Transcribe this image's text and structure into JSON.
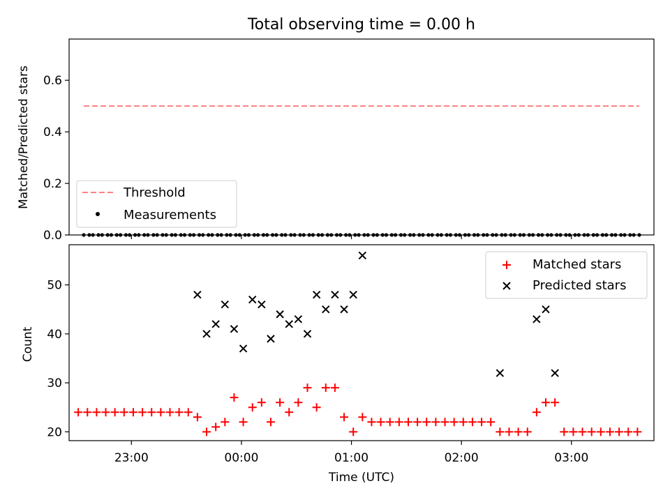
{
  "figure": {
    "title": "Total observing time = 0.00 h",
    "xlabel": "Time (UTC)"
  },
  "chart_data": [
    {
      "type": "scatter",
      "panel": "top",
      "ylabel": "Matched/Predicted stars",
      "xlim": [
        "22:26",
        "03:45"
      ],
      "ylim": [
        0,
        0.76
      ],
      "yticks": [
        0.0,
        0.2,
        0.4,
        0.6
      ],
      "ytick_labels": [
        "0.0",
        "0.2",
        "0.4",
        "0.6"
      ],
      "legend_position": "lower-left",
      "threshold": {
        "name": "Threshold",
        "value": 0.5,
        "x_start": "22:34",
        "x_end": "03:37",
        "color": "#ff7f7f"
      },
      "series": [
        {
          "name": "Measurements",
          "color": "#000000",
          "marker": "dot",
          "x": [
            "22:34",
            "22:37",
            "22:39",
            "22:42",
            "22:44",
            "22:47",
            "22:49",
            "22:52",
            "22:54",
            "22:57",
            "22:59",
            "23:02",
            "23:04",
            "23:07",
            "23:09",
            "23:12",
            "23:14",
            "23:17",
            "23:19",
            "23:22",
            "23:24",
            "23:27",
            "23:29",
            "23:32",
            "23:34",
            "23:37",
            "23:39",
            "23:42",
            "23:44",
            "23:47",
            "23:49",
            "23:52",
            "23:54",
            "23:57",
            "23:59",
            "00:02",
            "00:04",
            "00:07",
            "00:09",
            "00:12",
            "00:14",
            "00:17",
            "00:19",
            "00:22",
            "00:24",
            "00:27",
            "00:29",
            "00:32",
            "00:34",
            "00:37",
            "00:39",
            "00:42",
            "00:44",
            "00:47",
            "00:49",
            "00:52",
            "00:54",
            "00:57",
            "00:59",
            "01:02",
            "01:04",
            "01:07",
            "01:09",
            "01:12",
            "01:14",
            "01:17",
            "01:19",
            "01:22",
            "01:24",
            "01:27",
            "01:29",
            "01:32",
            "01:34",
            "01:37",
            "01:39",
            "01:42",
            "01:44",
            "01:47",
            "01:49",
            "01:52",
            "01:54",
            "01:57",
            "01:59",
            "02:02",
            "02:04",
            "02:07",
            "02:09",
            "02:12",
            "02:14",
            "02:17",
            "02:19",
            "02:22",
            "02:24",
            "02:27",
            "02:29",
            "02:32",
            "02:34",
            "02:37",
            "02:39",
            "02:42",
            "02:44",
            "02:47",
            "02:49",
            "02:52",
            "02:54",
            "02:57",
            "02:59",
            "03:02",
            "03:04",
            "03:07",
            "03:09",
            "03:12",
            "03:14",
            "03:17",
            "03:19",
            "03:22",
            "03:24",
            "03:27",
            "03:29",
            "03:32",
            "03:34",
            "03:37"
          ],
          "y": [
            0,
            0,
            0,
            0,
            0,
            0,
            0,
            0,
            0,
            0,
            0,
            0,
            0,
            0,
            0,
            0,
            0,
            0,
            0,
            0,
            0,
            0,
            0,
            0,
            0,
            0,
            0,
            0,
            0,
            0,
            0,
            0,
            0,
            0,
            0,
            0,
            0,
            0,
            0,
            0,
            0,
            0,
            0,
            0,
            0,
            0,
            0,
            0,
            0,
            0,
            0,
            0,
            0,
            0,
            0,
            0,
            0,
            0,
            0,
            0,
            0,
            0,
            0,
            0,
            0,
            0,
            0,
            0,
            0,
            0,
            0,
            0,
            0,
            0,
            0,
            0,
            0,
            0,
            0,
            0,
            0,
            0,
            0,
            0,
            0,
            0,
            0,
            0,
            0,
            0,
            0,
            0,
            0,
            0,
            0,
            0,
            0,
            0,
            0,
            0,
            0,
            0,
            0,
            0,
            0,
            0,
            0,
            0,
            0,
            0,
            0,
            0,
            0,
            0,
            0,
            0,
            0,
            0,
            0,
            0,
            0,
            0
          ]
        }
      ]
    },
    {
      "type": "scatter",
      "panel": "bottom",
      "ylabel": "Count",
      "xlim": [
        "22:26",
        "03:45"
      ],
      "ylim": [
        18.2,
        58.2
      ],
      "yticks": [
        20,
        30,
        40,
        50
      ],
      "ytick_labels": [
        "20",
        "30",
        "40",
        "50"
      ],
      "xticks": [
        "23:00",
        "00:00",
        "01:00",
        "02:00",
        "03:00"
      ],
      "xtick_labels": [
        "23:00",
        "00:00",
        "01:00",
        "02:00",
        "03:00"
      ],
      "legend_position": "upper-right",
      "series": [
        {
          "name": "Matched stars",
          "color": "#ff0000",
          "marker": "plus",
          "x": [
            "22:31",
            "22:36",
            "22:41",
            "22:46",
            "22:51",
            "22:56",
            "23:01",
            "23:06",
            "23:11",
            "23:16",
            "23:21",
            "23:26",
            "23:31",
            "23:36",
            "23:41",
            "23:46",
            "23:51",
            "23:56",
            "00:01",
            "00:06",
            "00:11",
            "00:16",
            "00:21",
            "00:26",
            "00:31",
            "00:36",
            "00:41",
            "00:46",
            "00:51",
            "00:56",
            "01:01",
            "01:06",
            "01:11",
            "01:16",
            "01:21",
            "01:26",
            "01:31",
            "01:36",
            "01:41",
            "01:46",
            "01:51",
            "01:56",
            "02:01",
            "02:06",
            "02:11",
            "02:16",
            "02:21",
            "02:26",
            "02:31",
            "02:36",
            "02:41",
            "02:46",
            "02:51",
            "02:56",
            "03:01",
            "03:06",
            "03:11",
            "03:16",
            "03:21",
            "03:26",
            "03:31",
            "03:36"
          ],
          "y": [
            24,
            24,
            24,
            24,
            24,
            24,
            24,
            24,
            24,
            24,
            24,
            24,
            24,
            23,
            20,
            21,
            22,
            27,
            22,
            25,
            26,
            22,
            26,
            24,
            26,
            29,
            25,
            29,
            29,
            23,
            20,
            23,
            22,
            22,
            22,
            22,
            22,
            22,
            22,
            22,
            22,
            22,
            22,
            22,
            22,
            22,
            20,
            20,
            20,
            20,
            24,
            26,
            26,
            20,
            20,
            20,
            20,
            20,
            20,
            20,
            20,
            20
          ]
        },
        {
          "name": "Predicted stars",
          "color": "#000000",
          "marker": "x",
          "x": [
            "23:36",
            "23:41",
            "23:46",
            "23:51",
            "23:56",
            "00:01",
            "00:06",
            "00:11",
            "00:16",
            "00:21",
            "00:26",
            "00:31",
            "00:36",
            "00:41",
            "00:46",
            "00:51",
            "00:56",
            "01:01",
            "01:06",
            "02:21",
            "02:41",
            "02:46",
            "02:51"
          ],
          "y": [
            48,
            40,
            42,
            46,
            41,
            37,
            47,
            46,
            39,
            44,
            42,
            43,
            40,
            48,
            45,
            48,
            45,
            48,
            56,
            32,
            43,
            45,
            32
          ]
        }
      ]
    }
  ]
}
